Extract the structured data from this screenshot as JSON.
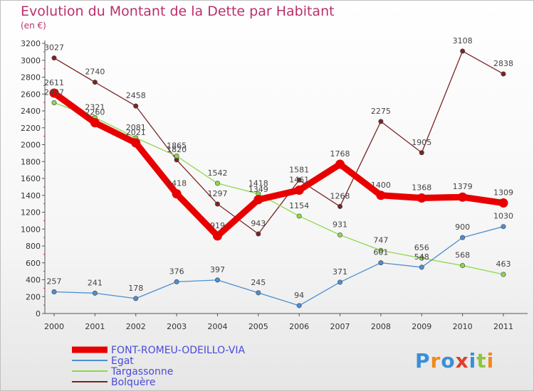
{
  "chart_data": {
    "type": "line",
    "title": "Evolution du Montant de la Dette par Habitant",
    "subtitle": "(en €)",
    "xlabel": "",
    "ylabel": "",
    "x": [
      "2000",
      "2001",
      "2002",
      "2003",
      "2004",
      "2005",
      "2006",
      "2007",
      "2008",
      "2009",
      "2010",
      "2011"
    ],
    "ylim": [
      0,
      3200
    ],
    "yticks": [
      0,
      200,
      400,
      600,
      800,
      1000,
      1200,
      1400,
      1600,
      1800,
      2000,
      2200,
      2400,
      2600,
      2800,
      3000,
      3200
    ],
    "grid": false,
    "legend_position": "bottom-left",
    "series": [
      {
        "name": "FONT-ROMEU-ODEILLO-VIA",
        "color": "#e80000",
        "values": [
          2611,
          2260,
          2021,
          1418,
          919,
          1349,
          1461,
          1768,
          1400,
          1368,
          1379,
          1309
        ]
      },
      {
        "name": "Egat",
        "color": "#4e8ed0",
        "values": [
          257,
          241,
          178,
          376,
          397,
          245,
          94,
          371,
          601,
          548,
          900,
          1030
        ]
      },
      {
        "name": "Targassonne",
        "color": "#8ed64c",
        "values": [
          2497,
          2321,
          2081,
          1865,
          1542,
          1418,
          1154,
          931,
          747,
          656,
          568,
          463
        ]
      },
      {
        "name": "Bolquère",
        "color": "#7a2424",
        "values": [
          3027,
          2740,
          2458,
          1820,
          1297,
          943,
          1581,
          1268,
          2275,
          1905,
          3108,
          2838
        ]
      }
    ]
  },
  "logo": {
    "text": "Proxiti",
    "colors": [
      "#3a8fd8",
      "#f08a1c",
      "#3a8fd8",
      "#e23c2c",
      "#3a8fd8",
      "#8cc63f",
      "#f08a1c"
    ]
  }
}
